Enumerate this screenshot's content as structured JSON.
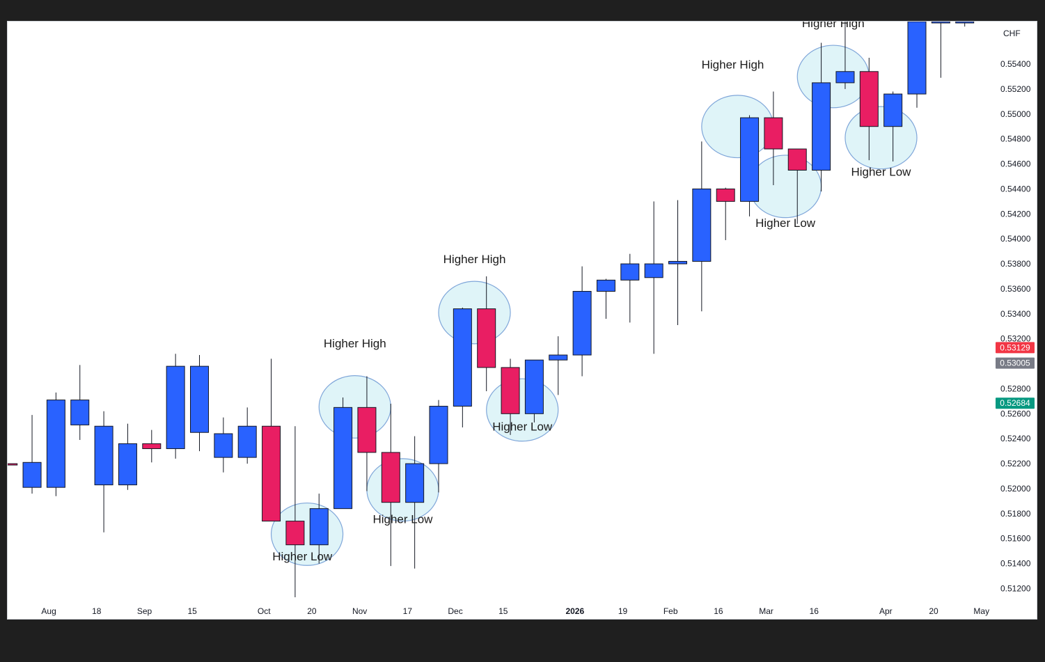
{
  "chart_data": {
    "type": "candlestick",
    "currency_label": "CHF",
    "colors": {
      "up": "#2962ff",
      "down": "#e91e63",
      "wick": "#131722",
      "highlight_fill": "#dff4f8",
      "highlight_stroke": "#7fa6d9"
    },
    "y_ticks": [
      "0.55400",
      "0.55200",
      "0.55000",
      "0.54800",
      "0.54600",
      "0.54400",
      "0.54200",
      "0.54000",
      "0.53800",
      "0.53600",
      "0.53400",
      "0.53200",
      "0.52800",
      "0.52600",
      "0.52400",
      "0.52200",
      "0.52000",
      "0.51800",
      "0.51600",
      "0.51400",
      "0.51200"
    ],
    "ylim": [
      0.5108,
      0.5574
    ],
    "price_badges": [
      {
        "label": "0.53129",
        "value": 0.53129,
        "color": "#f23645"
      },
      {
        "label": "0.53005",
        "value": 0.53005,
        "color": "#787b86"
      },
      {
        "label": "0.52684",
        "value": 0.52684,
        "color": "#089981"
      }
    ],
    "x_labels": [
      {
        "label": "Aug",
        "week": 1.7
      },
      {
        "label": "18",
        "week": 3.7
      },
      {
        "label": "Sep",
        "week": 5.7
      },
      {
        "label": "15",
        "week": 7.7
      },
      {
        "label": "Oct",
        "week": 10.7
      },
      {
        "label": "20",
        "week": 12.7
      },
      {
        "label": "Nov",
        "week": 14.7
      },
      {
        "label": "17",
        "week": 16.7
      },
      {
        "label": "Dec",
        "week": 18.7
      },
      {
        "label": "15",
        "week": 20.7
      },
      {
        "label": "2026",
        "week": 23.7,
        "bold": true
      },
      {
        "label": "19",
        "week": 25.7
      },
      {
        "label": "Feb",
        "week": 27.7
      },
      {
        "label": "16",
        "week": 29.7
      },
      {
        "label": "Mar",
        "week": 31.7
      },
      {
        "label": "16",
        "week": 33.7
      },
      {
        "label": "Apr",
        "week": 36.7
      },
      {
        "label": "20",
        "week": 38.7
      },
      {
        "label": "May",
        "week": 40.7
      }
    ],
    "candles": [
      {
        "o": 0.522,
        "h": 0.522,
        "l": 0.5219,
        "c": 0.5219
      },
      {
        "o": 0.5201,
        "h": 0.5259,
        "l": 0.5196,
        "c": 0.5221
      },
      {
        "o": 0.5201,
        "h": 0.5277,
        "l": 0.5194,
        "c": 0.5271
      },
      {
        "o": 0.5251,
        "h": 0.5299,
        "l": 0.5239,
        "c": 0.5271
      },
      {
        "o": 0.5203,
        "h": 0.5262,
        "l": 0.5165,
        "c": 0.525
      },
      {
        "o": 0.5203,
        "h": 0.5252,
        "l": 0.5199,
        "c": 0.5236
      },
      {
        "o": 0.5236,
        "h": 0.5247,
        "l": 0.5221,
        "c": 0.5232
      },
      {
        "o": 0.5232,
        "h": 0.5308,
        "l": 0.5224,
        "c": 0.5298
      },
      {
        "o": 0.5245,
        "h": 0.5307,
        "l": 0.523,
        "c": 0.5298
      },
      {
        "o": 0.5225,
        "h": 0.5257,
        "l": 0.5213,
        "c": 0.5244
      },
      {
        "o": 0.5225,
        "h": 0.5265,
        "l": 0.522,
        "c": 0.525
      },
      {
        "o": 0.525,
        "h": 0.5304,
        "l": 0.5177,
        "c": 0.5174
      },
      {
        "o": 0.5174,
        "h": 0.525,
        "l": 0.5113,
        "c": 0.5155
      },
      {
        "o": 0.5155,
        "h": 0.5196,
        "l": 0.514,
        "c": 0.5184
      },
      {
        "o": 0.5184,
        "h": 0.5273,
        "l": 0.5184,
        "c": 0.5265
      },
      {
        "o": 0.5265,
        "h": 0.529,
        "l": 0.5198,
        "c": 0.5229
      },
      {
        "o": 0.5229,
        "h": 0.5268,
        "l": 0.5138,
        "c": 0.5189
      },
      {
        "o": 0.5189,
        "h": 0.5242,
        "l": 0.5136,
        "c": 0.522
      },
      {
        "o": 0.522,
        "h": 0.5271,
        "l": 0.5197,
        "c": 0.5266
      },
      {
        "o": 0.5266,
        "h": 0.5345,
        "l": 0.5249,
        "c": 0.5344
      },
      {
        "o": 0.5344,
        "h": 0.537,
        "l": 0.5278,
        "c": 0.5297
      },
      {
        "o": 0.5297,
        "h": 0.5304,
        "l": 0.5243,
        "c": 0.526
      },
      {
        "o": 0.526,
        "h": 0.5303,
        "l": 0.5253,
        "c": 0.5303
      },
      {
        "o": 0.5303,
        "h": 0.5322,
        "l": 0.5275,
        "c": 0.5307
      },
      {
        "o": 0.5307,
        "h": 0.5378,
        "l": 0.529,
        "c": 0.5358
      },
      {
        "o": 0.5358,
        "h": 0.5368,
        "l": 0.5336,
        "c": 0.5367
      },
      {
        "o": 0.5367,
        "h": 0.5388,
        "l": 0.5333,
        "c": 0.538
      },
      {
        "o": 0.5369,
        "h": 0.543,
        "l": 0.5308,
        "c": 0.538
      },
      {
        "o": 0.538,
        "h": 0.5431,
        "l": 0.5331,
        "c": 0.5382
      },
      {
        "o": 0.5382,
        "h": 0.5478,
        "l": 0.5342,
        "c": 0.544
      },
      {
        "o": 0.544,
        "h": 0.5441,
        "l": 0.5399,
        "c": 0.543
      },
      {
        "o": 0.543,
        "h": 0.5499,
        "l": 0.5418,
        "c": 0.5497
      },
      {
        "o": 0.5497,
        "h": 0.5518,
        "l": 0.5443,
        "c": 0.5472
      },
      {
        "o": 0.5472,
        "h": 0.5472,
        "l": 0.5412,
        "c": 0.5455
      },
      {
        "o": 0.5455,
        "h": 0.5557,
        "l": 0.5438,
        "c": 0.5525
      },
      {
        "o": 0.5525,
        "h": 0.5574,
        "l": 0.552,
        "c": 0.5534
      },
      {
        "o": 0.5534,
        "h": 0.5545,
        "l": 0.5463,
        "c": 0.549
      },
      {
        "o": 0.549,
        "h": 0.5518,
        "l": 0.5462,
        "c": 0.5516
      },
      {
        "o": 0.5516,
        "h": 0.5574,
        "l": 0.5505,
        "c": 0.5574
      },
      {
        "o": 0.5574,
        "h": 0.5574,
        "l": 0.5529,
        "c": 0.5574
      },
      {
        "o": 0.5574,
        "h": 0.5574,
        "l": 0.557,
        "c": 0.5574
      }
    ],
    "highlights": [
      {
        "week": 12.5,
        "price": 0.51635,
        "width_weeks": 3.0,
        "height_price": 0.005
      },
      {
        "week": 14.5,
        "price": 0.52655,
        "width_weeks": 3.0,
        "height_price": 0.005
      },
      {
        "week": 16.5,
        "price": 0.5199,
        "width_weeks": 3.0,
        "height_price": 0.005
      },
      {
        "week": 19.5,
        "price": 0.5341,
        "width_weeks": 3.0,
        "height_price": 0.005
      },
      {
        "week": 21.5,
        "price": 0.5263,
        "width_weeks": 3.0,
        "height_price": 0.005
      },
      {
        "week": 30.5,
        "price": 0.549,
        "width_weeks": 3.0,
        "height_price": 0.005
      },
      {
        "week": 32.5,
        "price": 0.5442,
        "width_weeks": 3.0,
        "height_price": 0.005
      },
      {
        "week": 34.5,
        "price": 0.553,
        "width_weeks": 3.0,
        "height_price": 0.005
      },
      {
        "week": 36.5,
        "price": 0.5481,
        "width_weeks": 3.0,
        "height_price": 0.005
      }
    ],
    "annotations": [
      {
        "text": "Higher Low",
        "week": 12.3,
        "price": 0.51425
      },
      {
        "text": "Higher High",
        "week": 14.5,
        "price": 0.5313
      },
      {
        "text": "Higher Low",
        "week": 16.5,
        "price": 0.51725
      },
      {
        "text": "Higher High",
        "week": 19.5,
        "price": 0.53805
      },
      {
        "text": "Higher Low",
        "week": 21.5,
        "price": 0.52465
      },
      {
        "text": "Higher High",
        "week": 30.3,
        "price": 0.55365
      },
      {
        "text": "Higher Low",
        "week": 32.5,
        "price": 0.54095
      },
      {
        "text": "Higher High",
        "week": 34.5,
        "price": 0.55695
      },
      {
        "text": "Higher Low",
        "week": 36.5,
        "price": 0.54505
      }
    ]
  }
}
